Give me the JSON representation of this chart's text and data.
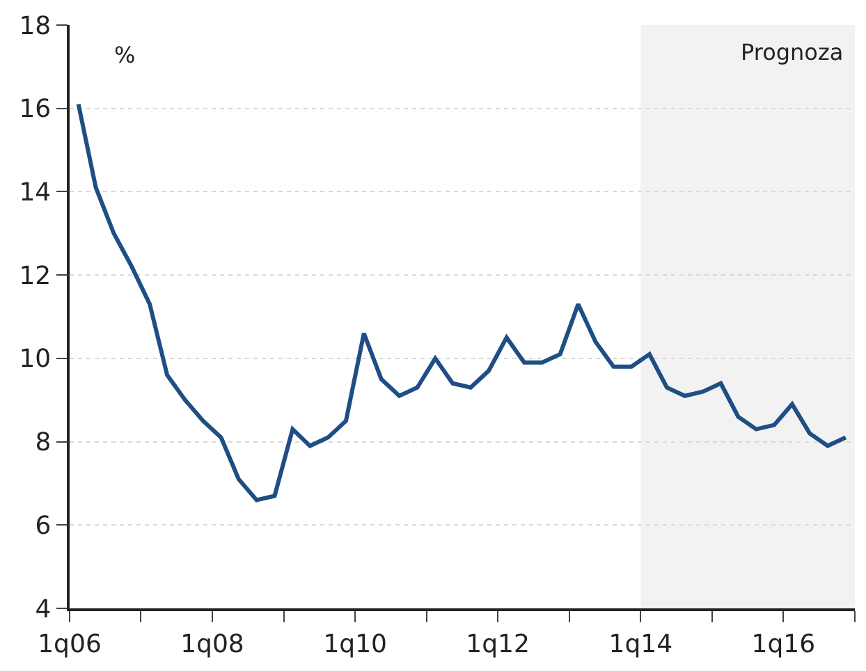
{
  "chart_data": {
    "type": "line",
    "ylabel": "%",
    "x": [
      "2006-02-15",
      "2006-05-15",
      "2006-08-15",
      "2006-11-15",
      "2007-02-15",
      "2007-05-15",
      "2007-08-15",
      "2007-11-15",
      "2008-02-15",
      "2008-05-15",
      "2008-08-15",
      "2008-11-15",
      "2009-02-15",
      "2009-05-15",
      "2009-08-15",
      "2009-11-15",
      "2010-02-15",
      "2010-05-15",
      "2010-08-15",
      "2010-11-15",
      "2011-02-15",
      "2011-05-15",
      "2011-08-15",
      "2011-11-15",
      "2012-02-15",
      "2012-05-15",
      "2012-08-15",
      "2012-11-15",
      "2013-02-15",
      "2013-05-15",
      "2013-08-15",
      "2013-11-15",
      "2014-02-15",
      "2014-05-15",
      "2014-08-15",
      "2014-11-15",
      "2015-02-15",
      "2015-05-15",
      "2015-08-15",
      "2015-11-15",
      "2016-02-15",
      "2016-05-15",
      "2016-08-15",
      "2016-11-15"
    ],
    "series": [
      {
        "color": "#1f4e85",
        "values": [
          16.1,
          14.1,
          13.0,
          12.2,
          11.3,
          9.6,
          9.0,
          8.5,
          8.1,
          7.1,
          6.6,
          6.7,
          8.3,
          7.9,
          8.1,
          8.5,
          10.6,
          9.5,
          9.1,
          9.3,
          10.0,
          9.4,
          9.3,
          9.7,
          10.5,
          9.9,
          9.9,
          10.1,
          11.3,
          10.4,
          9.8,
          9.8,
          10.1,
          9.3,
          9.1,
          9.2,
          9.4,
          8.6,
          8.3,
          8.4,
          8.9,
          8.2,
          7.9,
          8.1
        ]
      }
    ],
    "xlim": [
      "2006-01-01",
      "2017-01-01"
    ],
    "xticks": [
      {
        "value": "2006-01-01",
        "label": "1q06"
      },
      {
        "value": "2007-01-01",
        "label": null
      },
      {
        "value": "2008-01-01",
        "label": "1q08"
      },
      {
        "value": "2009-01-01",
        "label": null
      },
      {
        "value": "2010-01-01",
        "label": "1q10"
      },
      {
        "value": "2011-01-01",
        "label": null
      },
      {
        "value": "2012-01-01",
        "label": "1q12"
      },
      {
        "value": "2013-01-01",
        "label": null
      },
      {
        "value": "2014-01-01",
        "label": "1q14"
      },
      {
        "value": "2015-01-01",
        "label": null
      },
      {
        "value": "2016-01-01",
        "label": "1q16"
      },
      {
        "value": "2017-01-01",
        "label": null
      }
    ],
    "ylim": [
      4,
      18
    ],
    "yticks": [
      4,
      6,
      8,
      10,
      12,
      14,
      16,
      18
    ],
    "bands": [
      {
        "axis": "x",
        "from": "2014-01-01",
        "to": "2017-01-01",
        "label": "Prognoza",
        "color": "#f2f2f2"
      }
    ],
    "grid": "y",
    "marker": "none",
    "line_style": "solid",
    "legend": false
  }
}
